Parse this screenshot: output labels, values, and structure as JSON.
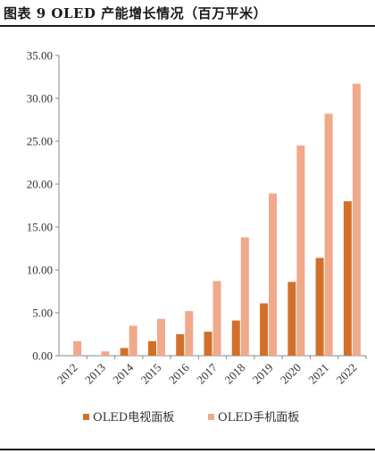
{
  "header": {
    "title": "图表 9 OLED 产能增长情况（百万平米）"
  },
  "chart_data": {
    "type": "bar",
    "categories": [
      "2012",
      "2013",
      "2014",
      "2015",
      "2016",
      "2017",
      "2018",
      "2019",
      "2020",
      "2021",
      "2022"
    ],
    "series": [
      {
        "name": "OLED电视面板",
        "color": "#D2702B",
        "values": [
          0,
          0,
          0.9,
          1.7,
          2.5,
          2.8,
          4.1,
          6.1,
          8.6,
          11.4,
          18.0
        ]
      },
      {
        "name": "OLED手机面板",
        "color": "#F0A98A",
        "values": [
          1.7,
          0.5,
          3.5,
          4.3,
          5.2,
          8.7,
          13.8,
          18.9,
          24.5,
          28.2,
          31.7
        ]
      }
    ],
    "yticks": [
      "0.00",
      "5.00",
      "10.00",
      "15.00",
      "20.00",
      "25.00",
      "30.00",
      "35.00"
    ],
    "ylim": [
      0,
      35
    ],
    "legend_position": "bottom",
    "grid": false
  }
}
